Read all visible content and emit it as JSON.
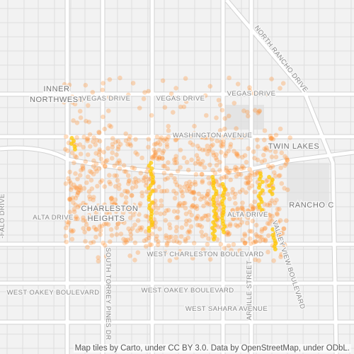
{
  "labels": [
    "INNER",
    "NORTHWEST",
    "VEGAS DRIVE",
    "VEGAS DRIVE",
    "VEGAS DRIVE",
    "WASHINGTON AVENUE",
    "TWIN LAKES",
    "NORTH RANCHO DRIVE",
    "RANCHO C",
    "CHARLESTON",
    "HEIGHTS",
    "ALTA DRIVE",
    "ALTA DRIVE",
    "WEST CHARLESTON BOULEVARD",
    "SOUTH TORREY PINES DR",
    "VALLEY VIEW BOULEVARD",
    "ARVILLE STREET",
    "WEST OAKEY BOULEVARD",
    "WEST OAKEY BOULEVARD",
    "WEST SAHARA AVENUE",
    "-FALO DRIVE"
  ],
  "attribution": "Map tiles by Carto, under CC BY 3.0. Data by OpenStreetMap, under ODbL."
}
